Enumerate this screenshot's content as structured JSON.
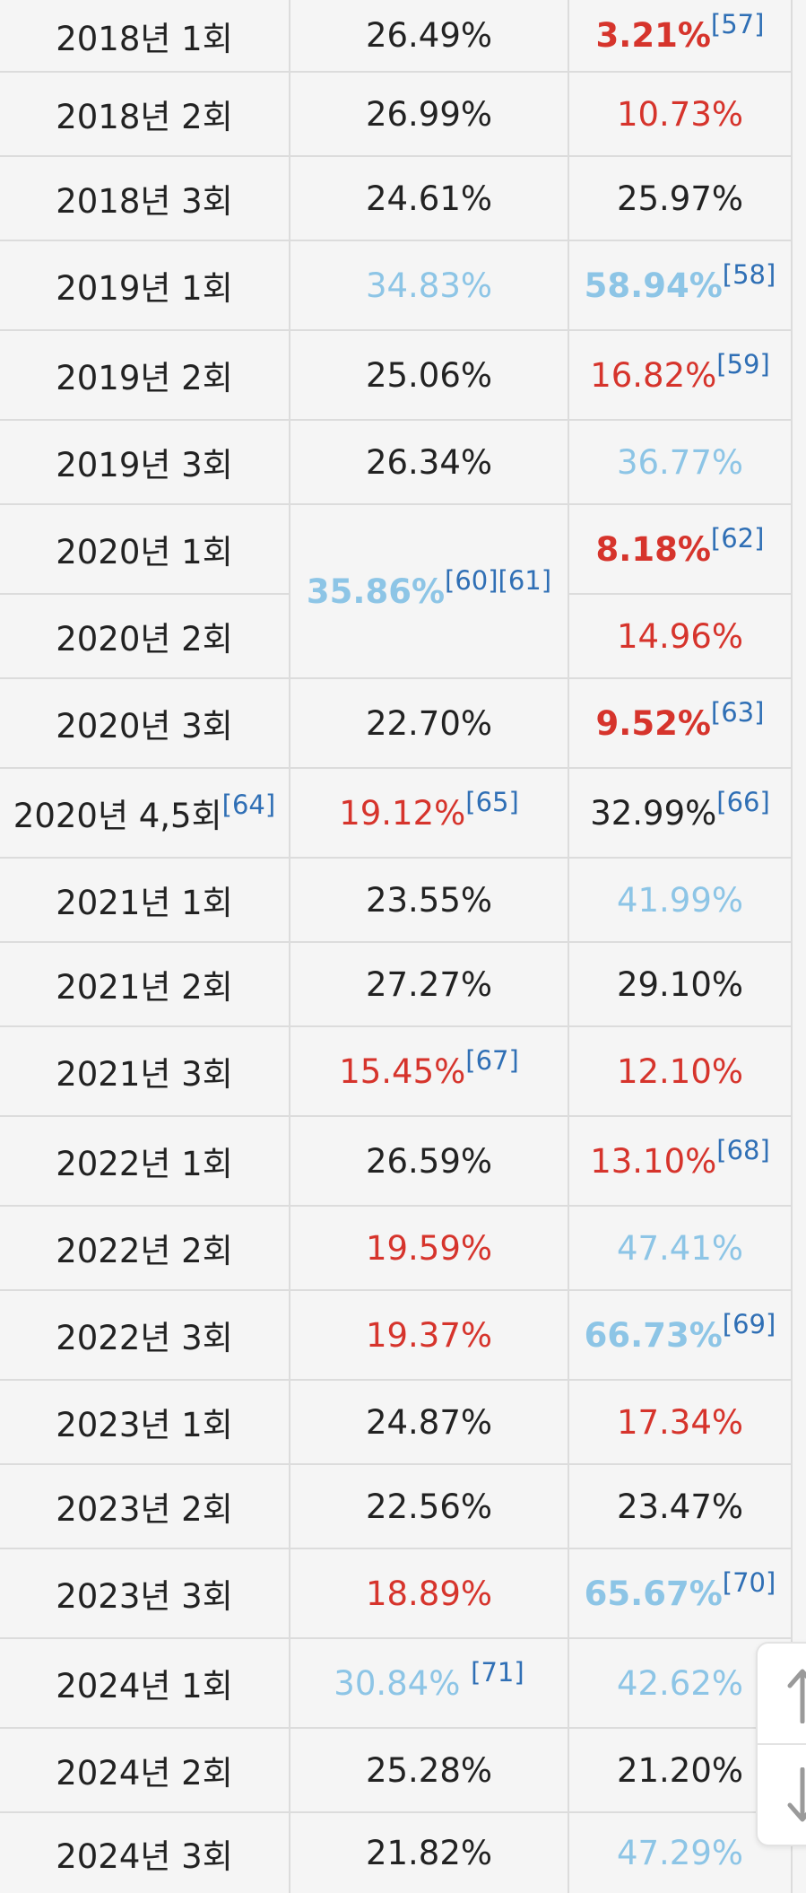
{
  "rows": [
    {
      "round": "2018년 1회",
      "c2": {
        "value": "26.49%"
      },
      "c3": {
        "value": "3.21%",
        "style": "red b",
        "ref": "[57]"
      },
      "h": 80
    },
    {
      "round": "2018년 2회",
      "c2": {
        "value": "26.99%"
      },
      "c3": {
        "value": "10.73%",
        "style": "red"
      },
      "h": 94
    },
    {
      "round": "2018년 3회",
      "c2": {
        "value": "24.61%"
      },
      "c3": {
        "value": "25.97%"
      },
      "h": 94
    },
    {
      "round": "2019년 1회",
      "c2": {
        "value": "34.83%",
        "style": "blue"
      },
      "c3": {
        "value": "58.94%",
        "style": "blue b",
        "ref": "[58]"
      },
      "h": 100
    },
    {
      "round": "2019년 2회",
      "c2": {
        "value": "25.06%"
      },
      "c3": {
        "value": "16.82%",
        "style": "red",
        "ref": "[59]"
      },
      "h": 100
    },
    {
      "round": "2019년 3회",
      "c2": {
        "value": "26.34%"
      },
      "c3": {
        "value": "36.77%",
        "style": "blue"
      },
      "h": 94
    },
    {
      "round": "2020년 1회",
      "c2": {
        "value": "35.86%",
        "style": "blue b",
        "ref": "[60][61]",
        "rowspan": 2
      },
      "c3": {
        "value": "8.18%",
        "style": "red b",
        "ref": "[62]"
      },
      "h": 100
    },
    {
      "round": "2020년 2회",
      "c2": null,
      "c3": {
        "value": "14.96%",
        "style": "red"
      },
      "h": 94
    },
    {
      "round": "2020년 3회",
      "c2": {
        "value": "22.70%"
      },
      "c3": {
        "value": "9.52%",
        "style": "red b",
        "ref": "[63]"
      },
      "h": 100
    },
    {
      "round": "2020년 4,5회",
      "round_ref": "[64]",
      "c2": {
        "value": "19.12%",
        "style": "red",
        "ref": "[65]"
      },
      "c3": {
        "value": "32.99%",
        "ref": "[66]"
      },
      "h": 100
    },
    {
      "round": "2021년 1회",
      "c2": {
        "value": "23.55%"
      },
      "c3": {
        "value": "41.99%",
        "style": "blue"
      },
      "h": 94
    },
    {
      "round": "2021년 2회",
      "c2": {
        "value": "27.27%"
      },
      "c3": {
        "value": "29.10%"
      },
      "h": 94
    },
    {
      "round": "2021년 3회",
      "c2": {
        "value": "15.45%",
        "style": "red",
        "ref": "[67]"
      },
      "c3": {
        "value": "12.10%",
        "style": "red"
      },
      "h": 100
    },
    {
      "round": "2022년 1회",
      "c2": {
        "value": "26.59%"
      },
      "c3": {
        "value": "13.10%",
        "style": "red",
        "ref": "[68]"
      },
      "h": 100
    },
    {
      "round": "2022년 2회",
      "c2": {
        "value": "19.59%",
        "style": "red"
      },
      "c3": {
        "value": "47.41%",
        "style": "blue"
      },
      "h": 94
    },
    {
      "round": "2022년 3회",
      "c2": {
        "value": "19.37%",
        "style": "red"
      },
      "c3": {
        "value": "66.73%",
        "style": "blue b",
        "ref": "[69]"
      },
      "h": 100
    },
    {
      "round": "2023년 1회",
      "c2": {
        "value": "24.87%"
      },
      "c3": {
        "value": "17.34%",
        "style": "red"
      },
      "h": 94
    },
    {
      "round": "2023년 2회",
      "c2": {
        "value": "22.56%"
      },
      "c3": {
        "value": "23.47%"
      },
      "h": 94
    },
    {
      "round": "2023년 3회",
      "c2": {
        "value": "18.89%",
        "style": "red"
      },
      "c3": {
        "value": "65.67%",
        "style": "blue b",
        "ref": "[70]"
      },
      "h": 100
    },
    {
      "round": "2024년 1회",
      "c2": {
        "value": "30.84%",
        "style": "blue",
        "ref": "[71]",
        "ref_space": true
      },
      "c3": {
        "value": "42.62%",
        "style": "blue"
      },
      "h": 100
    },
    {
      "round": "2024년 2회",
      "c2": {
        "value": "25.28%"
      },
      "c3": {
        "value": "21.20%"
      },
      "h": 94
    },
    {
      "round": "2024년 3회",
      "c2": {
        "value": "21.82%"
      },
      "c3": {
        "value": "47.29%",
        "style": "blue"
      },
      "h": 90
    }
  ],
  "colors": {
    "red": "#d6342c",
    "blue": "#8dc5e6",
    "ref": "#2f6fb5",
    "text": "#222222",
    "border": "#dcdcdc",
    "background": "#f5f5f5"
  },
  "controls": {
    "up_icon": "arrow-up-icon",
    "down_icon": "arrow-down-icon"
  }
}
